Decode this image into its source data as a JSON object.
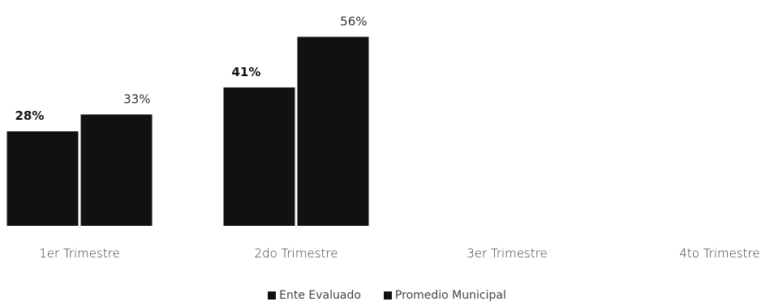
{
  "chart_data": {
    "type": "bar",
    "categories": [
      "1er Trimestre",
      "2do Trimestre",
      "3er Trimestre",
      "4to Trimestre"
    ],
    "series": [
      {
        "name": "Ente Evaluado",
        "values": [
          28,
          41,
          null,
          null
        ],
        "labels": [
          "28%",
          "41%",
          "",
          ""
        ],
        "color": "#111111",
        "label_weight": "bold"
      },
      {
        "name": "Promedio Municipal",
        "values": [
          33,
          56,
          null,
          null
        ],
        "labels": [
          "33%",
          "56%",
          "",
          ""
        ],
        "color": "#111111",
        "label_weight": "normal"
      }
    ],
    "ylim": [
      0,
      60
    ],
    "grid": false,
    "legend_position": "bottom"
  }
}
